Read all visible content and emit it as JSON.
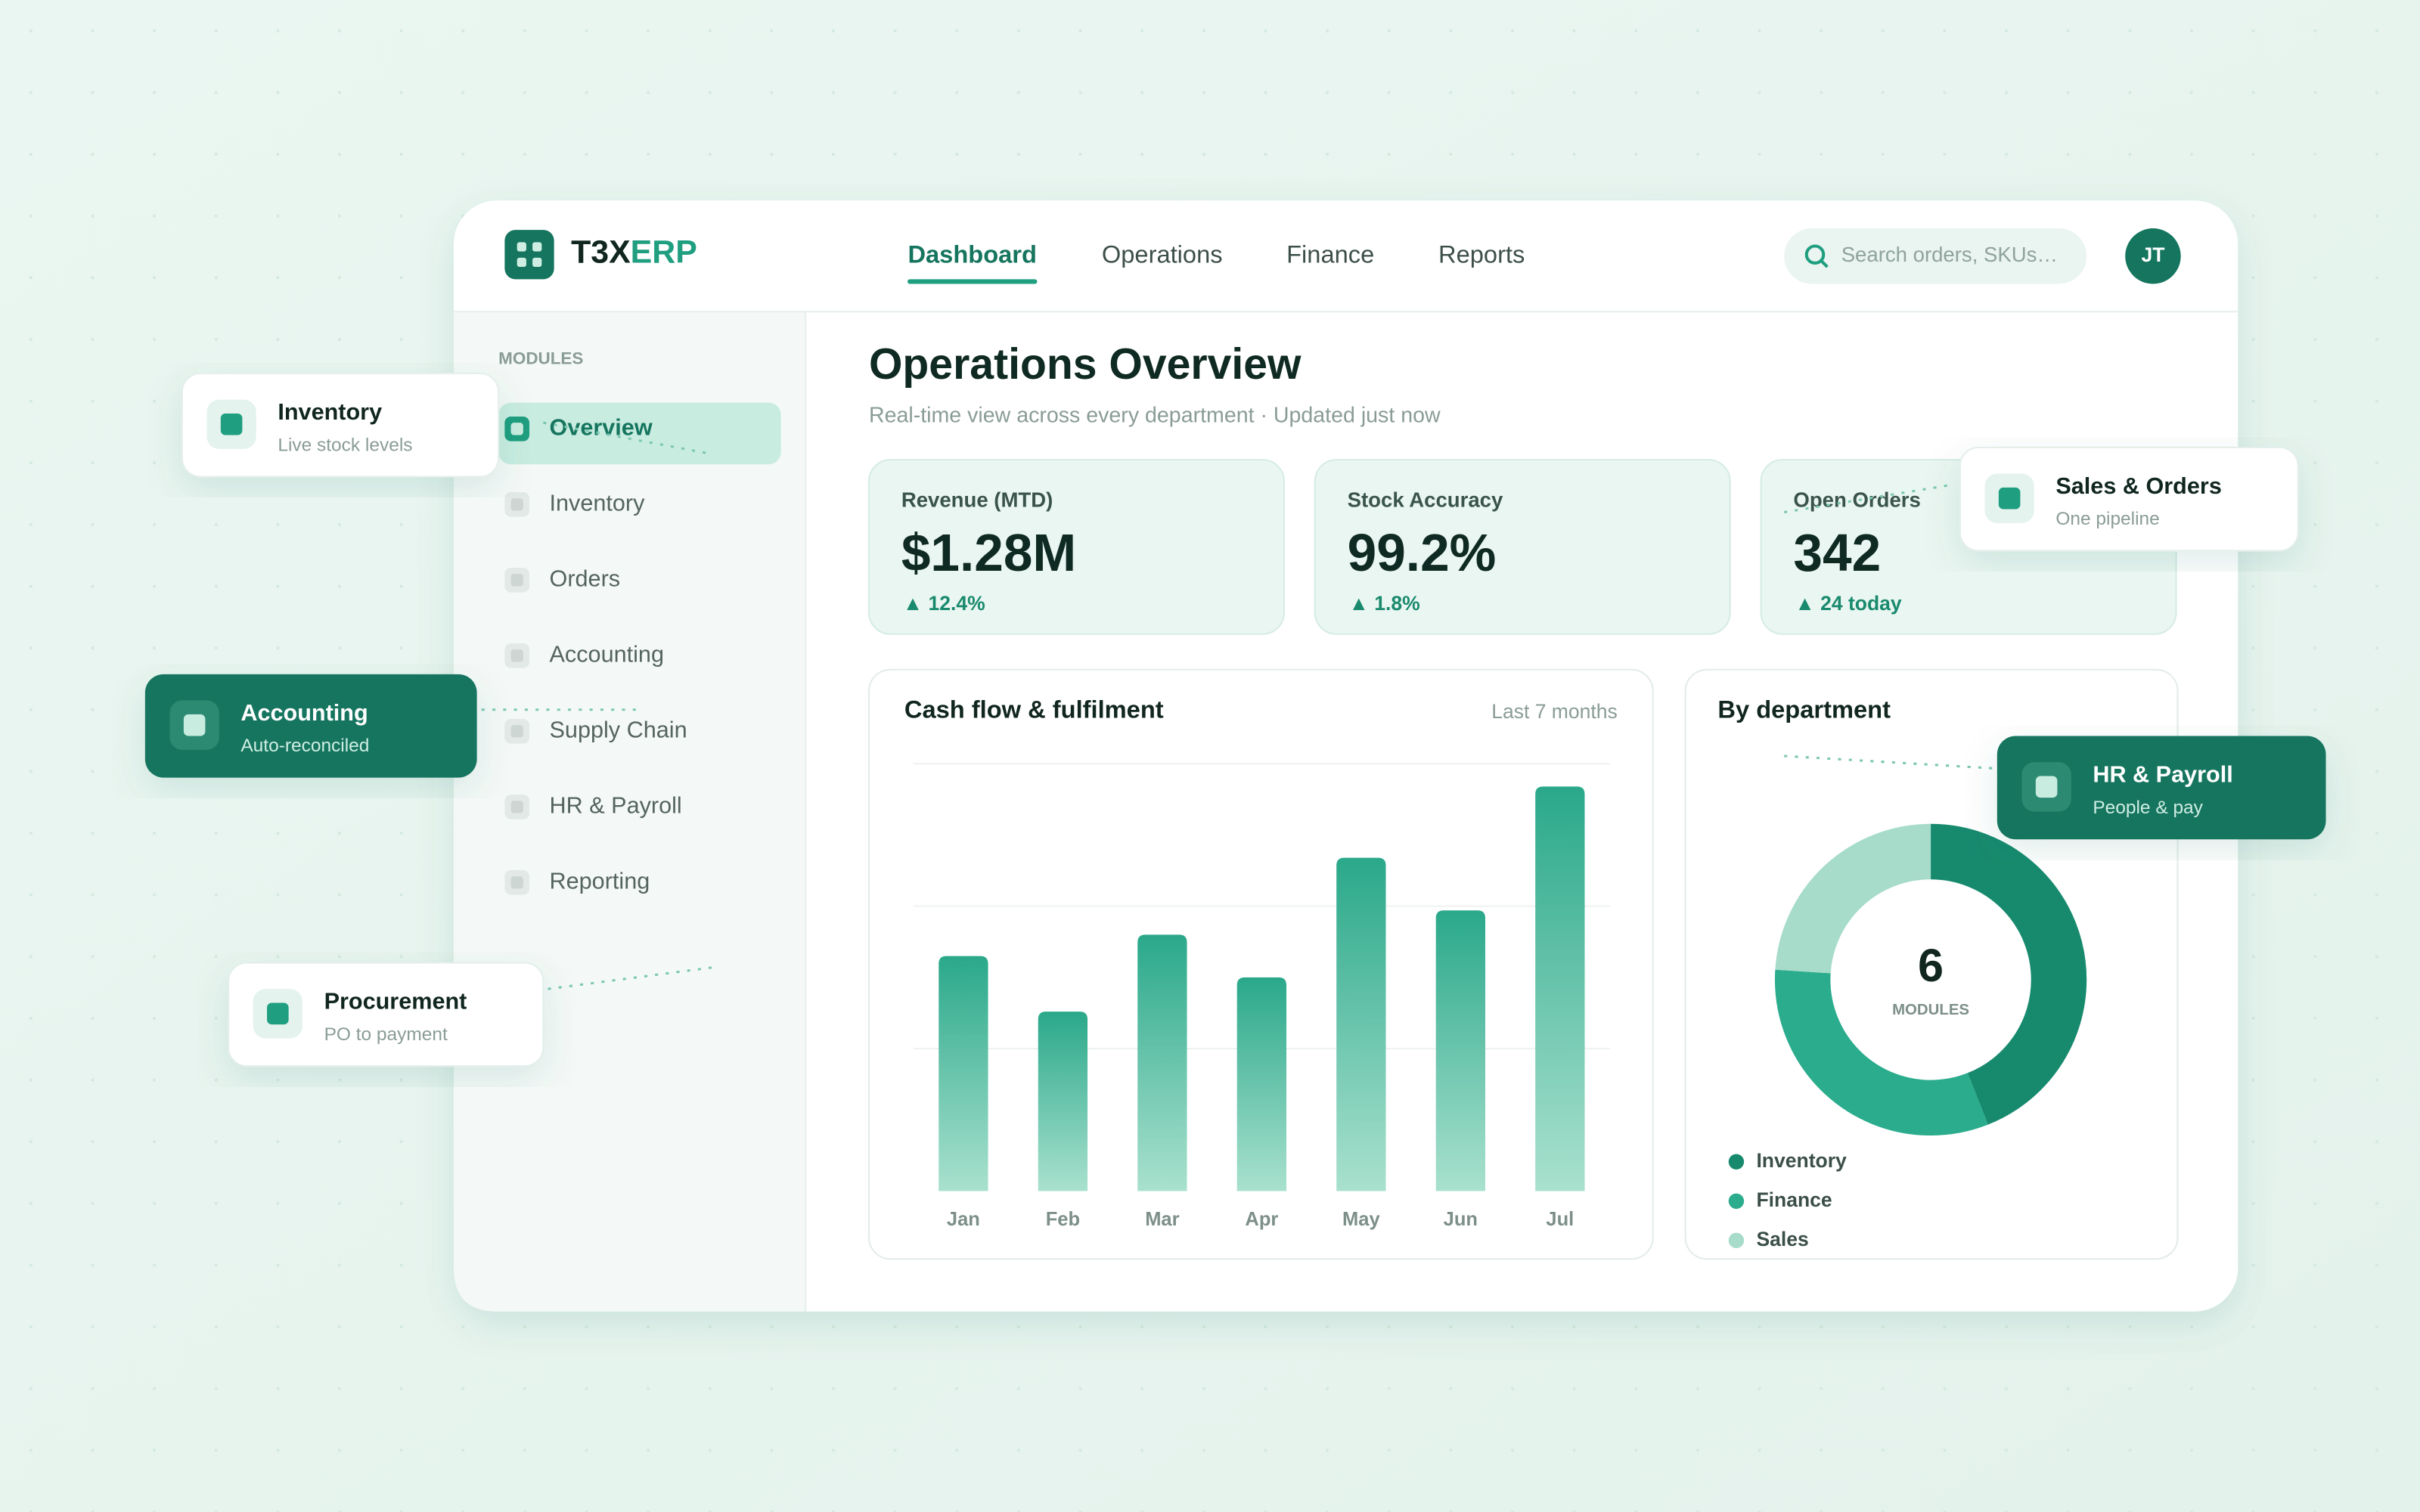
{
  "brand": {
    "part1": "T3X",
    "part2": "ERP"
  },
  "nav": {
    "items": [
      "Dashboard",
      "Operations",
      "Finance",
      "Reports"
    ],
    "active": 0
  },
  "search": {
    "placeholder": "Search orders, SKUs…"
  },
  "user": {
    "initials": "JT"
  },
  "sidebar": {
    "heading": "MODULES",
    "items": [
      "Overview",
      "Inventory",
      "Orders",
      "Accounting",
      "Supply Chain",
      "HR & Payroll",
      "Reporting"
    ],
    "active": 0
  },
  "page": {
    "title": "Operations Overview",
    "subtitle": "Real-time view across every department · Updated just now"
  },
  "kpis": [
    {
      "label": "Revenue (MTD)",
      "value": "$1.28M",
      "delta": "▲ 12.4%"
    },
    {
      "label": "Stock Accuracy",
      "value": "99.2%",
      "delta": "▲ 1.8%"
    },
    {
      "label": "Open Orders",
      "value": "342",
      "delta": "▲ 24 today"
    }
  ],
  "chart_data": [
    {
      "type": "bar",
      "title": "Cash flow & fulfilment",
      "subtitle": "Last 7 months",
      "categories": [
        "Jan",
        "Feb",
        "Mar",
        "Apr",
        "May",
        "Jun",
        "Jul"
      ],
      "values": [
        165,
        126,
        180,
        150,
        234,
        197,
        284
      ],
      "color": "#2aa88a",
      "ylim": [
        0,
        300
      ],
      "grid": true
    },
    {
      "type": "donut",
      "title": "By department",
      "center_value": "6",
      "center_label": "MODULES",
      "categories": [
        "Inventory",
        "Finance",
        "Sales"
      ],
      "values": [
        44,
        32,
        24
      ],
      "colors": [
        "#178a6e",
        "#2aac8d",
        "#a6dcc9"
      ]
    }
  ],
  "floating_cards": [
    {
      "title": "Inventory",
      "subtitle": "Live stock levels"
    },
    {
      "title": "Accounting",
      "subtitle": "Auto-reconciled"
    },
    {
      "title": "Procurement",
      "subtitle": "PO to payment"
    },
    {
      "title": "Sales & Orders",
      "subtitle": "One pipeline"
    },
    {
      "title": "HR & Payroll",
      "subtitle": "People & pay"
    }
  ]
}
